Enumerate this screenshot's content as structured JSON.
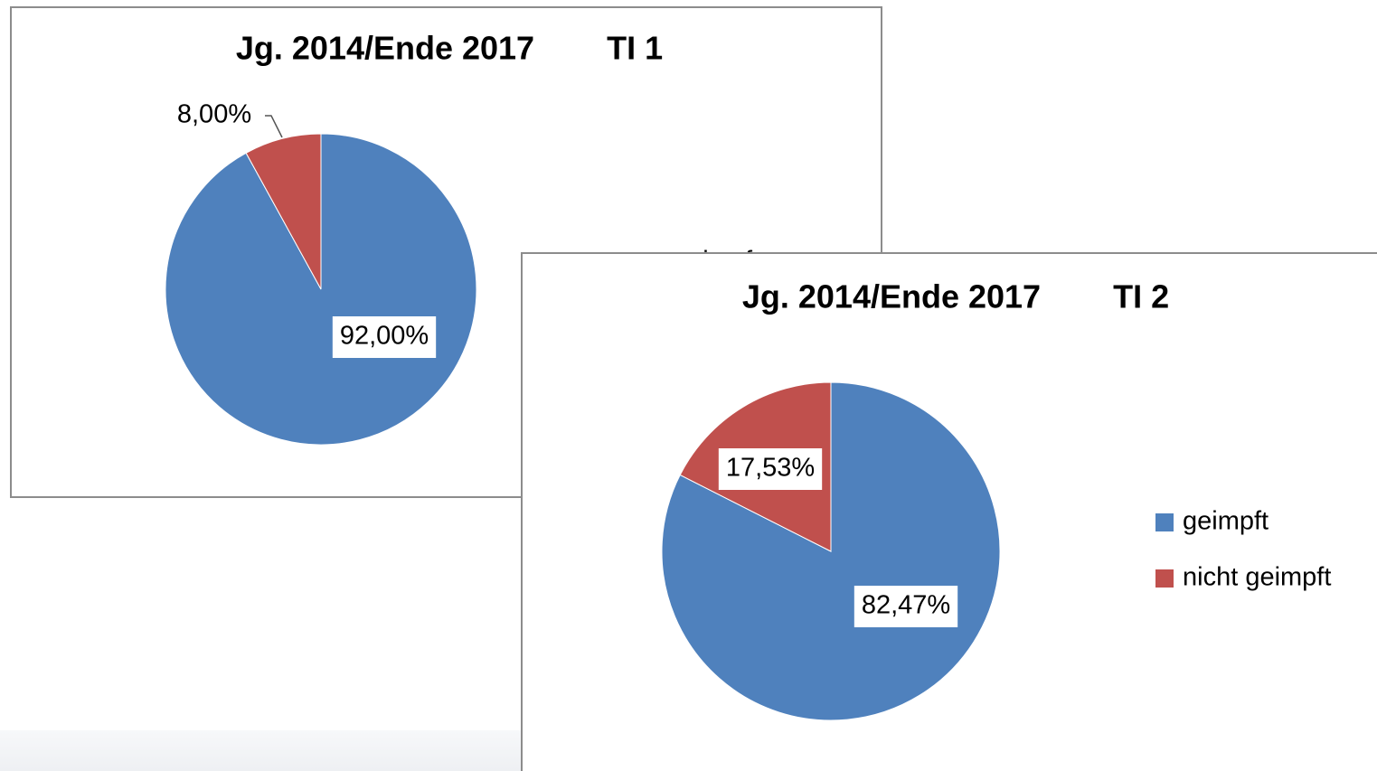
{
  "chart_data": [
    {
      "type": "pie",
      "title": "Jg. 2014/Ende 2017        TI 1",
      "categories": [
        "geimpft",
        "nicht geimpft"
      ],
      "values": [
        92,
        8
      ],
      "value_labels": [
        "92,00%",
        "8,00%"
      ],
      "colors": [
        "#4f81bd",
        "#c0504d"
      ],
      "legend": "right"
    },
    {
      "type": "pie",
      "title": "Jg. 2014/Ende 2017        TI 2",
      "categories": [
        "geimpft",
        "nicht geimpft"
      ],
      "values": [
        82.47,
        17.53
      ],
      "value_labels": [
        "82,47%",
        "17,53%"
      ],
      "colors": [
        "#4f81bd",
        "#c0504d"
      ],
      "legend": "right"
    }
  ]
}
